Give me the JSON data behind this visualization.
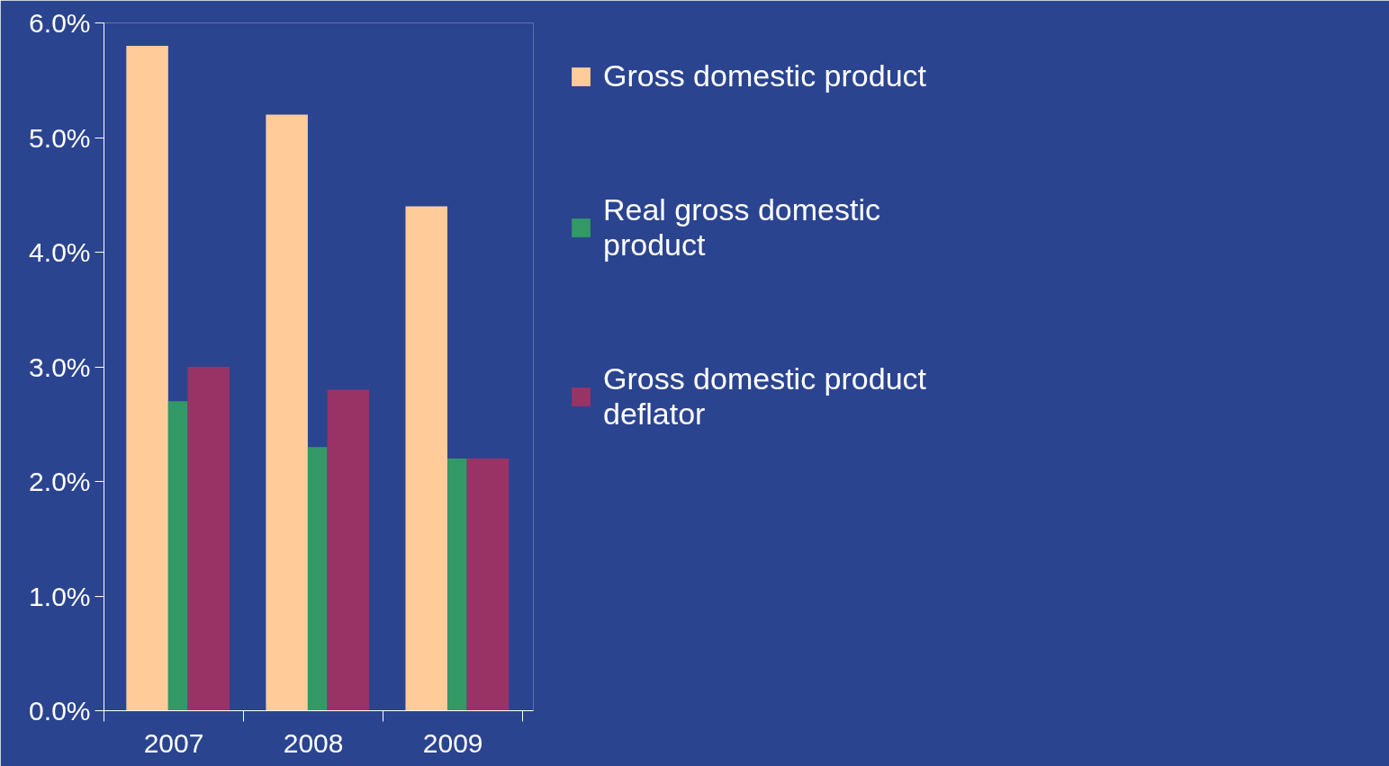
{
  "chart_data": {
    "type": "bar",
    "categories": [
      "2007",
      "2008",
      "2009"
    ],
    "series": [
      {
        "name": "Gross domestic product",
        "color": "#ffcc99",
        "values": [
          5.8,
          5.2,
          4.4
        ]
      },
      {
        "name": "Real gross domestic product",
        "color": "#339966",
        "values": [
          2.7,
          2.3,
          2.2
        ]
      },
      {
        "name": "Gross domestic product deflator",
        "color": "#993366",
        "values": [
          3.0,
          2.8,
          2.2
        ]
      }
    ],
    "ylim": [
      0,
      6
    ],
    "yticks": [
      {
        "value": 0,
        "label": "0.0%"
      },
      {
        "value": 1,
        "label": "1.0%"
      },
      {
        "value": 2,
        "label": "2.0%"
      },
      {
        "value": 3,
        "label": "3.0%"
      },
      {
        "value": 4,
        "label": "4.0%"
      },
      {
        "value": 5,
        "label": "5.0%"
      },
      {
        "value": 6,
        "label": "6.0%"
      }
    ],
    "grid": false,
    "legend": "right"
  }
}
